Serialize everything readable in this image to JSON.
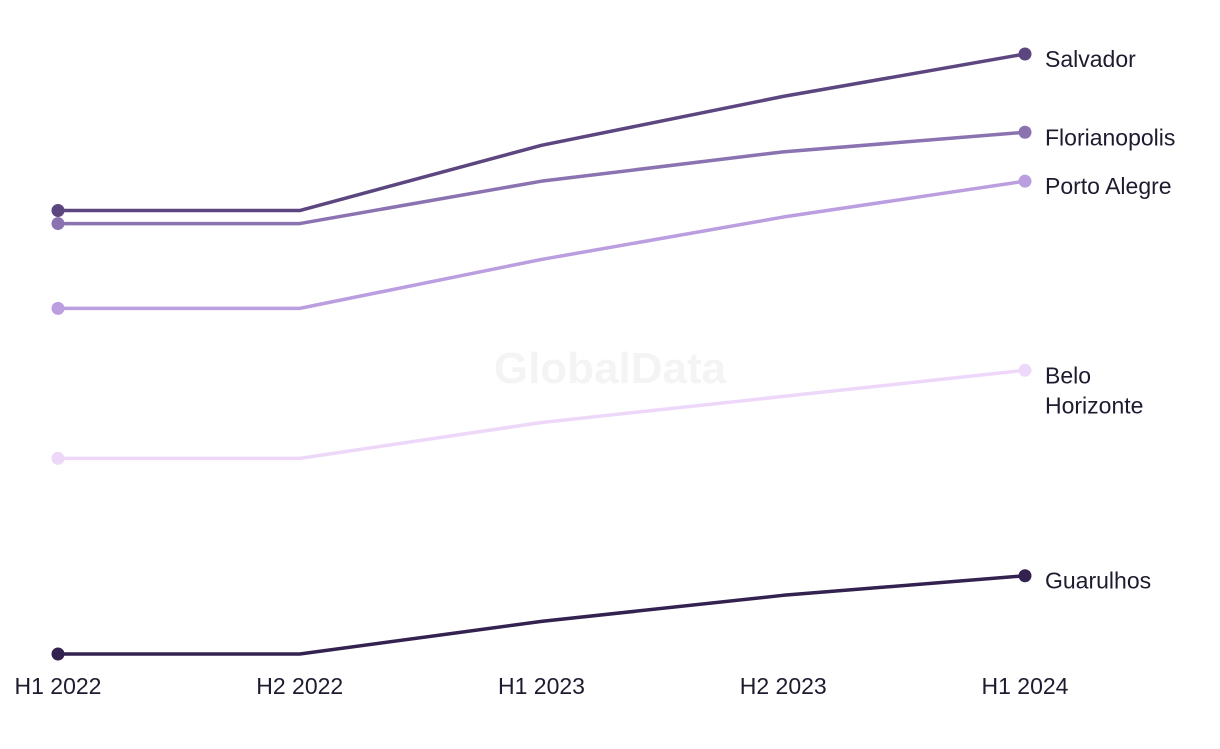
{
  "watermark": "GlobalData",
  "chart_data": {
    "type": "line",
    "title": "",
    "xlabel": "",
    "ylabel": "",
    "categories": [
      "H1 2022",
      "H2 2022",
      "H1 2023",
      "H2 2023",
      "H1 2024"
    ],
    "y_axis_visible": false,
    "grid": false,
    "legend": "direct labels at line ends (right)",
    "series": [
      {
        "name": "Salvador",
        "values": [
          78,
          78,
          88,
          95.5,
          102
        ],
        "color": "#5b4680",
        "label_lines": [
          "Salvador"
        ]
      },
      {
        "name": "Florianopolis",
        "values": [
          76,
          76,
          82.5,
          87,
          90
        ],
        "color": "#8b72b0",
        "label_lines": [
          "Florianopolis"
        ]
      },
      {
        "name": "Porto Alegre",
        "values": [
          63,
          63,
          70.5,
          77,
          82.5
        ],
        "color": "#bb9ee0",
        "label_lines": [
          "Porto Alegre"
        ]
      },
      {
        "name": "Belo Horizonte",
        "values": [
          40,
          40,
          45.5,
          49.5,
          53.5
        ],
        "color": "#eed8fa",
        "label_lines": [
          "Belo",
          "Horizonte"
        ]
      },
      {
        "name": "Guarulhos",
        "values": [
          10,
          10,
          15,
          19,
          22
        ],
        "color": "#33214f",
        "label_lines": [
          "Guarulhos"
        ]
      }
    ],
    "ylim": [
      10,
      102
    ]
  }
}
